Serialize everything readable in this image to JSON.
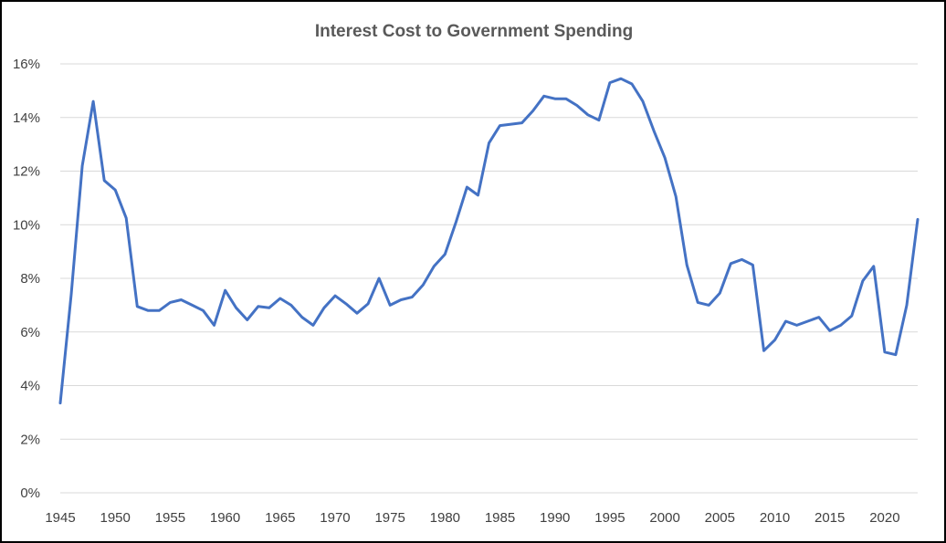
{
  "chart_data": {
    "type": "line",
    "title": "Interest Cost to Government Spending",
    "xlabel": "",
    "ylabel": "",
    "xlim": [
      1945,
      2023
    ],
    "ylim": [
      0,
      16
    ],
    "x_ticks": [
      "1945",
      "1950",
      "1955",
      "1960",
      "1965",
      "1970",
      "1975",
      "1980",
      "1985",
      "1990",
      "1995",
      "2000",
      "2005",
      "2010",
      "2015",
      "2020"
    ],
    "y_ticks": [
      "0%",
      "2%",
      "4%",
      "6%",
      "8%",
      "10%",
      "12%",
      "14%",
      "16%"
    ],
    "grid": true,
    "legend": "none",
    "series": [
      {
        "color": "#4472c4",
        "x": [
          1945,
          1946,
          1947,
          1948,
          1949,
          1950,
          1951,
          1952,
          1953,
          1954,
          1955,
          1956,
          1957,
          1958,
          1959,
          1960,
          1961,
          1962,
          1963,
          1964,
          1965,
          1966,
          1967,
          1968,
          1969,
          1970,
          1971,
          1972,
          1973,
          1974,
          1975,
          1976,
          1977,
          1978,
          1979,
          1980,
          1981,
          1982,
          1983,
          1984,
          1985,
          1986,
          1987,
          1988,
          1989,
          1990,
          1991,
          1992,
          1993,
          1994,
          1995,
          1996,
          1997,
          1998,
          1999,
          2000,
          2001,
          2002,
          2003,
          2004,
          2005,
          2006,
          2007,
          2008,
          2009,
          2010,
          2011,
          2012,
          2013,
          2014,
          2015,
          2016,
          2017,
          2018,
          2019,
          2020,
          2021,
          2022,
          2023
        ],
        "values": [
          3.35,
          7.4,
          12.2,
          14.6,
          11.65,
          11.3,
          10.25,
          6.95,
          6.8,
          6.8,
          7.1,
          7.2,
          7.0,
          6.8,
          6.25,
          7.55,
          6.9,
          6.45,
          6.95,
          6.9,
          7.25,
          7.0,
          6.55,
          6.25,
          6.9,
          7.35,
          7.05,
          6.7,
          7.05,
          8.0,
          7.0,
          7.2,
          7.3,
          7.75,
          8.45,
          8.9,
          10.1,
          11.4,
          11.1,
          13.05,
          13.7,
          13.75,
          13.8,
          14.25,
          14.8,
          14.7,
          14.7,
          14.45,
          14.1,
          13.9,
          15.3,
          15.45,
          15.25,
          14.6,
          13.5,
          12.5,
          11.05,
          8.5,
          7.1,
          7.0,
          7.45,
          8.55,
          8.7,
          8.5,
          5.3,
          5.7,
          6.4,
          6.25,
          6.4,
          6.55,
          6.05,
          6.25,
          6.6,
          7.9,
          8.45,
          5.25,
          5.15,
          7.0,
          10.2
        ]
      }
    ]
  }
}
